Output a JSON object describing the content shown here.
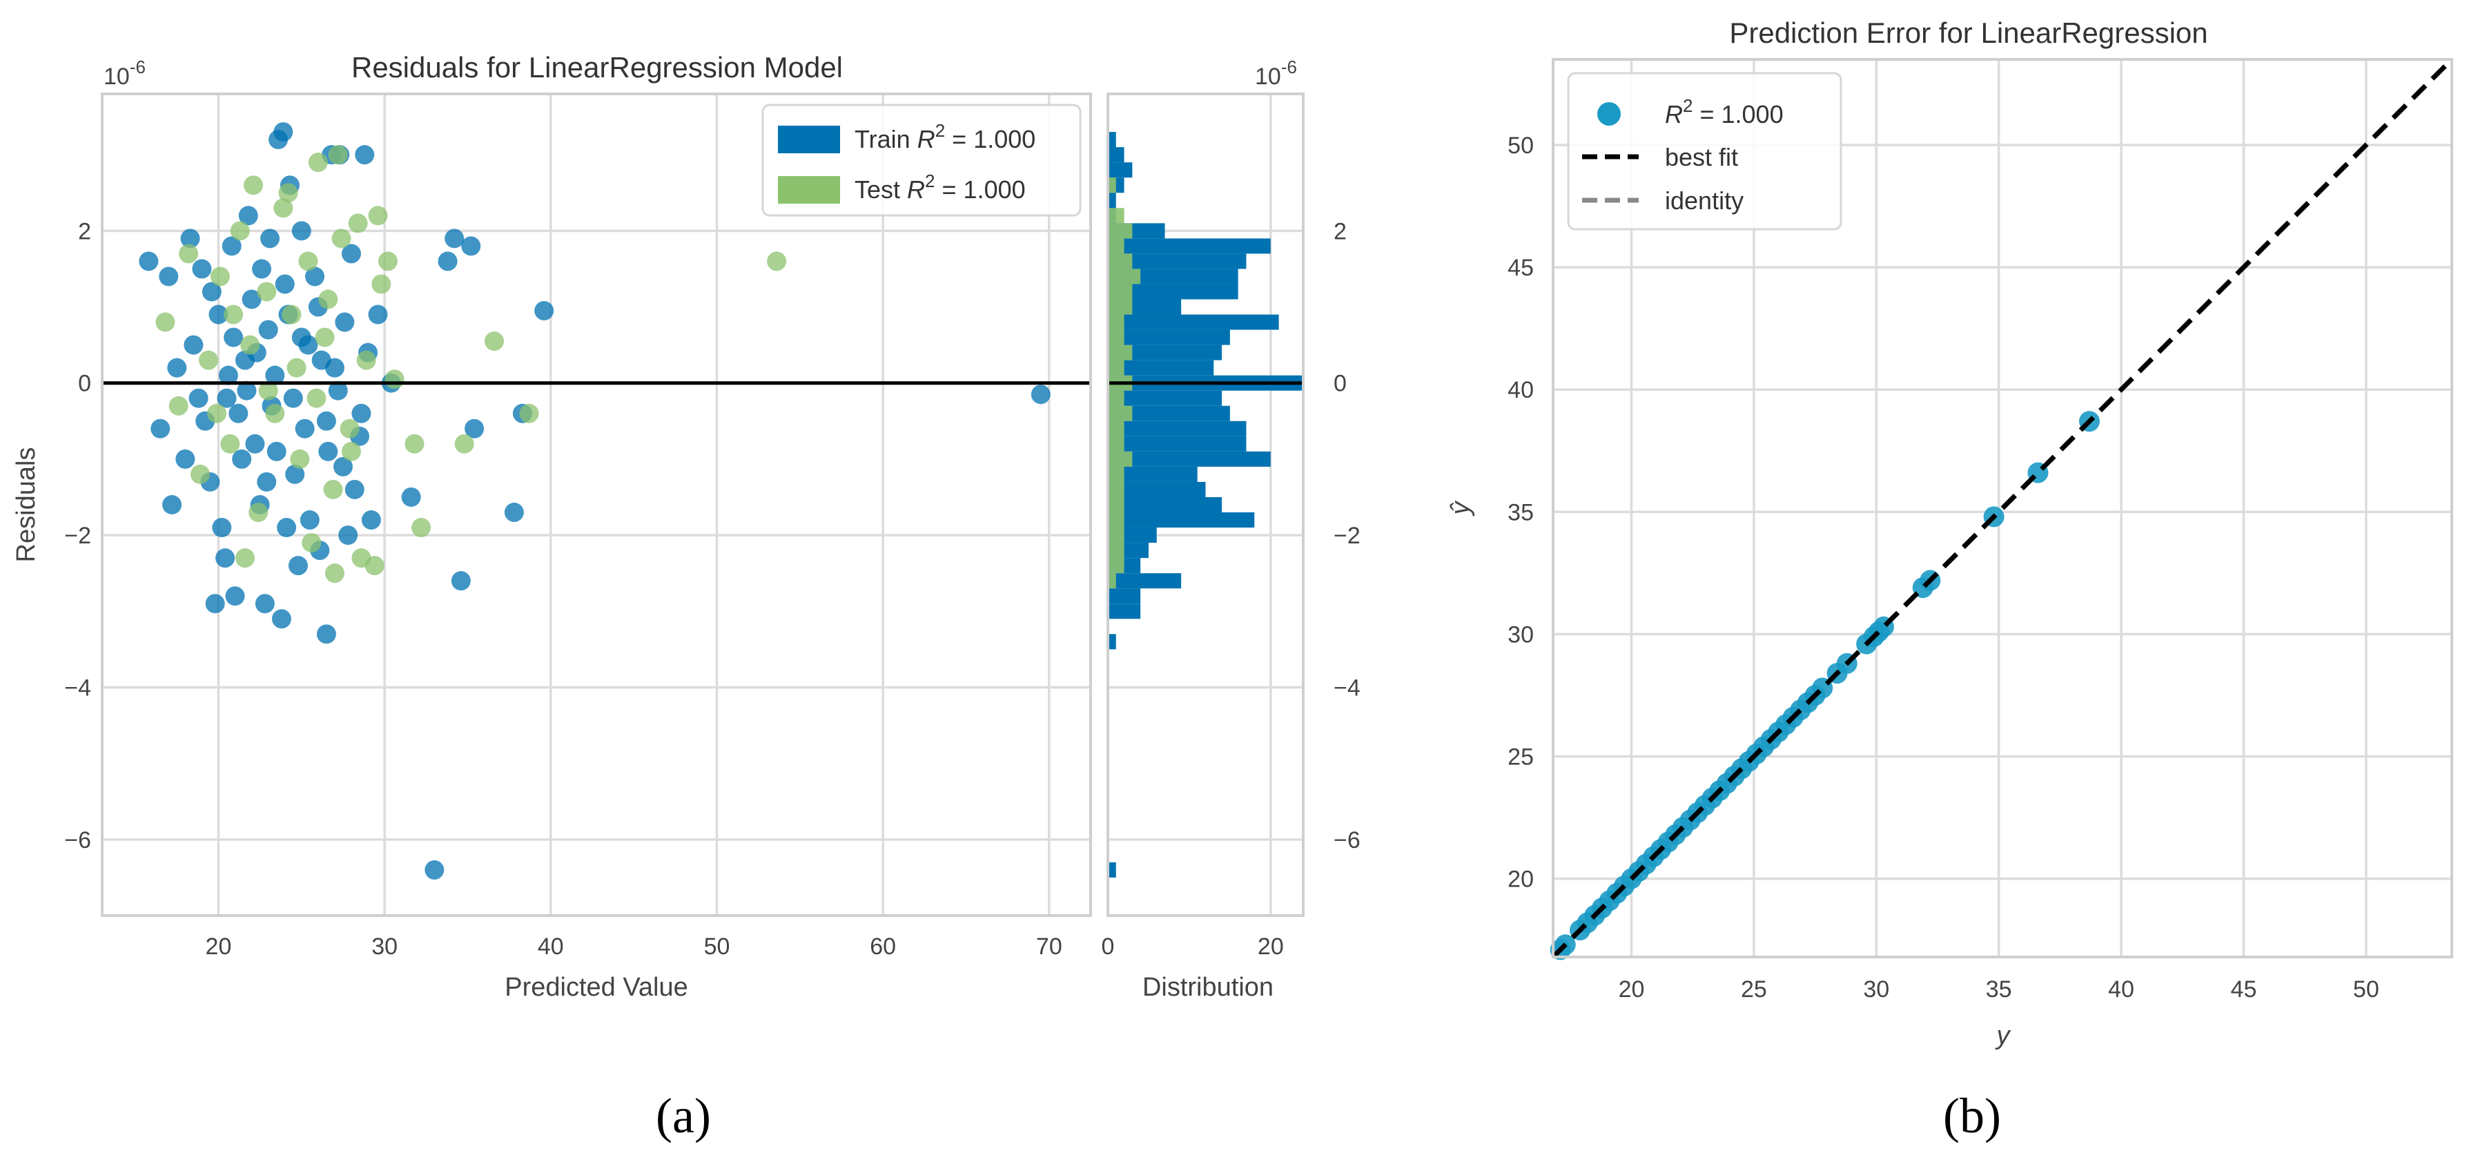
{
  "chart_data": [
    {
      "id": "a",
      "panel_label": "(a)",
      "type": "scatter",
      "title": "Residuals for LinearRegression Model",
      "xlabel": "Predicted Value",
      "ylabel": "Residuals",
      "y_multiplier": "10",
      "y_multiplier_exp": "-6",
      "xlim": [
        13,
        72.5
      ],
      "ylim": [
        -7,
        3.8
      ],
      "xticks": [
        20,
        30,
        40,
        50,
        60,
        70
      ],
      "yticks": [
        -6,
        -4,
        -2,
        0,
        2
      ],
      "legend": {
        "placement": "top-right",
        "entries": [
          {
            "series": "Train",
            "label": "Train",
            "r2": "1.000",
            "color": "#0072B2"
          },
          {
            "series": "Test",
            "label": "Test",
            "r2": "1.000",
            "color": "#8CC26E"
          }
        ]
      },
      "series": [
        {
          "name": "Train",
          "color": "#0072B2",
          "points": [
            [
              15.8,
              1.6
            ],
            [
              16.5,
              -0.6
            ],
            [
              17.0,
              1.4
            ],
            [
              17.5,
              0.2
            ],
            [
              18.0,
              -1.0
            ],
            [
              18.5,
              0.5
            ],
            [
              19.0,
              1.5
            ],
            [
              19.5,
              -1.3
            ],
            [
              20.0,
              0.9
            ],
            [
              20.4,
              -2.3
            ],
            [
              20.8,
              1.8
            ],
            [
              21.2,
              -0.4
            ],
            [
              21.6,
              0.3
            ],
            [
              22.0,
              1.1
            ],
            [
              22.5,
              -1.6
            ],
            [
              23.0,
              0.7
            ],
            [
              23.5,
              -0.9
            ],
            [
              24.0,
              1.3
            ],
            [
              24.5,
              -0.2
            ],
            [
              25.0,
              0.6
            ],
            [
              25.5,
              -1.8
            ],
            [
              26.0,
              1.0
            ],
            [
              26.5,
              -0.5
            ],
            [
              27.0,
              0.2
            ],
            [
              27.5,
              -1.1
            ],
            [
              28.0,
              1.7
            ],
            [
              28.5,
              -0.7
            ],
            [
              29.0,
              0.4
            ],
            [
              19.2,
              -0.5
            ],
            [
              20.6,
              0.1
            ],
            [
              21.4,
              -1.0
            ],
            [
              22.3,
              0.4
            ],
            [
              23.2,
              -0.3
            ],
            [
              24.2,
              0.9
            ],
            [
              25.2,
              -0.6
            ],
            [
              26.2,
              0.3
            ],
            [
              27.2,
              -0.1
            ],
            [
              28.2,
              -1.4
            ],
            [
              21.0,
              -2.8
            ],
            [
              22.8,
              -2.9
            ],
            [
              23.6,
              3.2
            ],
            [
              23.9,
              3.3
            ],
            [
              24.3,
              2.6
            ],
            [
              25.0,
              2.0
            ],
            [
              26.8,
              3.0
            ],
            [
              27.3,
              3.0
            ],
            [
              28.8,
              3.0
            ],
            [
              23.8,
              -3.1
            ],
            [
              26.5,
              -3.3
            ],
            [
              19.8,
              -2.9
            ],
            [
              18.3,
              1.9
            ],
            [
              17.2,
              -1.6
            ],
            [
              21.8,
              2.2
            ],
            [
              20.2,
              -1.9
            ],
            [
              24.8,
              -2.4
            ],
            [
              27.8,
              -2.0
            ],
            [
              29.6,
              0.9
            ],
            [
              30.4,
              0.0
            ],
            [
              31.6,
              -1.5
            ],
            [
              33.8,
              1.6
            ],
            [
              34.2,
              1.9
            ],
            [
              34.6,
              -2.6
            ],
            [
              35.2,
              1.8
            ],
            [
              35.4,
              -0.6
            ],
            [
              37.8,
              -1.7
            ],
            [
              38.3,
              -0.4
            ],
            [
              39.6,
              0.95
            ],
            [
              33.0,
              -6.4
            ],
            [
              69.5,
              -0.15
            ],
            [
              22.6,
              1.5
            ],
            [
              23.4,
              0.1
            ],
            [
              24.6,
              -1.2
            ],
            [
              25.8,
              1.4
            ],
            [
              26.6,
              -0.9
            ],
            [
              20.9,
              0.6
            ],
            [
              21.7,
              -0.1
            ],
            [
              22.2,
              -0.8
            ],
            [
              19.6,
              1.2
            ],
            [
              18.8,
              -0.2
            ],
            [
              25.4,
              0.5
            ],
            [
              27.6,
              0.8
            ],
            [
              28.6,
              -0.4
            ],
            [
              29.2,
              -1.8
            ],
            [
              23.1,
              1.9
            ],
            [
              24.1,
              -1.9
            ],
            [
              26.1,
              -2.2
            ],
            [
              20.5,
              -0.2
            ],
            [
              22.9,
              -1.3
            ]
          ]
        },
        {
          "name": "Test",
          "color": "#8CC26E",
          "points": [
            [
              16.8,
              0.8
            ],
            [
              17.6,
              -0.3
            ],
            [
              18.2,
              1.7
            ],
            [
              18.9,
              -1.2
            ],
            [
              19.4,
              0.3
            ],
            [
              20.1,
              1.4
            ],
            [
              20.7,
              -0.8
            ],
            [
              21.3,
              2.0
            ],
            [
              21.9,
              0.5
            ],
            [
              22.4,
              -1.7
            ],
            [
              22.9,
              1.2
            ],
            [
              23.4,
              -0.4
            ],
            [
              23.9,
              2.3
            ],
            [
              24.4,
              0.9
            ],
            [
              24.9,
              -1.0
            ],
            [
              25.4,
              1.6
            ],
            [
              25.9,
              -0.2
            ],
            [
              26.4,
              0.6
            ],
            [
              26.9,
              -1.4
            ],
            [
              27.4,
              1.9
            ],
            [
              27.9,
              -0.6
            ],
            [
              28.4,
              2.1
            ],
            [
              28.9,
              0.3
            ],
            [
              29.4,
              -2.4
            ],
            [
              29.8,
              1.3
            ],
            [
              30.2,
              1.6
            ],
            [
              30.6,
              0.05
            ],
            [
              31.8,
              -0.8
            ],
            [
              32.2,
              -1.9
            ],
            [
              34.8,
              -0.8
            ],
            [
              36.6,
              0.55
            ],
            [
              38.7,
              -0.4
            ],
            [
              53.6,
              1.6
            ],
            [
              22.1,
              2.6
            ],
            [
              24.2,
              2.5
            ],
            [
              26.0,
              2.9
            ],
            [
              27.2,
              3.0
            ],
            [
              29.6,
              2.2
            ],
            [
              21.6,
              -2.3
            ],
            [
              25.6,
              -2.1
            ],
            [
              27.0,
              -2.5
            ],
            [
              28.6,
              -2.3
            ],
            [
              23.0,
              -0.1
            ],
            [
              24.7,
              0.2
            ],
            [
              19.9,
              -0.4
            ],
            [
              20.9,
              0.9
            ],
            [
              26.6,
              1.1
            ],
            [
              28.0,
              -0.9
            ]
          ]
        }
      ]
    },
    {
      "id": "a-hist",
      "type": "bar",
      "orientation": "horizontal",
      "xlabel": "Distribution",
      "y_multiplier": "10",
      "y_multiplier_exp": "-6",
      "xlim": [
        0,
        24
      ],
      "ylim": [
        -7,
        3.8
      ],
      "xticks": [
        0,
        20
      ],
      "yticks": [
        -6,
        -4,
        -2,
        0,
        2
      ],
      "bin_width": 0.2,
      "series": [
        {
          "name": "Train",
          "color": "#0072B2",
          "bins": [
            [
              3.2,
              1
            ],
            [
              3.0,
              2
            ],
            [
              2.8,
              3
            ],
            [
              2.6,
              2
            ],
            [
              2.4,
              1
            ],
            [
              2.2,
              1
            ],
            [
              2.0,
              7
            ],
            [
              1.8,
              20
            ],
            [
              1.6,
              17
            ],
            [
              1.4,
              16
            ],
            [
              1.2,
              16
            ],
            [
              1.0,
              9
            ],
            [
              0.8,
              21
            ],
            [
              0.6,
              15
            ],
            [
              0.4,
              14
            ],
            [
              0.2,
              13
            ],
            [
              0.0,
              24
            ],
            [
              -0.2,
              14
            ],
            [
              -0.4,
              15
            ],
            [
              -0.6,
              17
            ],
            [
              -0.8,
              17
            ],
            [
              -1.0,
              20
            ],
            [
              -1.2,
              11
            ],
            [
              -1.4,
              12
            ],
            [
              -1.6,
              14
            ],
            [
              -1.8,
              18
            ],
            [
              -2.0,
              6
            ],
            [
              -2.2,
              5
            ],
            [
              -2.4,
              4
            ],
            [
              -2.6,
              9
            ],
            [
              -2.8,
              4
            ],
            [
              -3.0,
              4
            ],
            [
              -3.4,
              1
            ],
            [
              -6.4,
              1
            ]
          ]
        },
        {
          "name": "Test",
          "color": "#8CC26E",
          "bins": [
            [
              2.6,
              1
            ],
            [
              2.2,
              2
            ],
            [
              2.0,
              3
            ],
            [
              1.8,
              2
            ],
            [
              1.6,
              3
            ],
            [
              1.4,
              4
            ],
            [
              1.2,
              3
            ],
            [
              1.0,
              3
            ],
            [
              0.8,
              2
            ],
            [
              0.6,
              2
            ],
            [
              0.4,
              3
            ],
            [
              0.2,
              2
            ],
            [
              0.0,
              3
            ],
            [
              -0.2,
              2
            ],
            [
              -0.4,
              3
            ],
            [
              -0.6,
              2
            ],
            [
              -0.8,
              2
            ],
            [
              -1.0,
              3
            ],
            [
              -1.2,
              2
            ],
            [
              -1.4,
              2
            ],
            [
              -1.6,
              2
            ],
            [
              -1.8,
              2
            ],
            [
              -2.0,
              2
            ],
            [
              -2.2,
              2
            ],
            [
              -2.4,
              2
            ],
            [
              -2.6,
              1
            ]
          ]
        }
      ]
    },
    {
      "id": "b",
      "panel_label": "(b)",
      "type": "scatter",
      "title": "Prediction Error for LinearRegression",
      "xlabel": "y",
      "ylabel": "ŷ",
      "xlim": [
        16.8,
        53.5
      ],
      "ylim": [
        16.8,
        53.5
      ],
      "xticks": [
        20,
        25,
        30,
        35,
        40,
        45,
        50
      ],
      "yticks": [
        20,
        25,
        30,
        35,
        40,
        45,
        50
      ],
      "legend": {
        "placement": "top-left",
        "entries": [
          {
            "kind": "marker",
            "label": "R",
            "sup": "2",
            "value": " = 1.000",
            "color": "#1A9AC5"
          },
          {
            "kind": "line",
            "label": "best fit",
            "color": "#000000"
          },
          {
            "kind": "line",
            "label": "identity",
            "color": "#888888"
          }
        ]
      },
      "series": [
        {
          "name": "Points",
          "color": "#1A9AC5",
          "values": [
            17.1,
            17.3,
            17.9,
            18.2,
            18.5,
            18.8,
            19.1,
            19.4,
            19.7,
            20.0,
            20.3,
            20.6,
            20.9,
            21.2,
            21.5,
            21.8,
            22.1,
            22.4,
            22.7,
            23.0,
            23.3,
            23.6,
            23.9,
            24.2,
            24.5,
            24.8,
            25.1,
            25.4,
            25.7,
            26.0,
            26.3,
            26.6,
            26.9,
            27.2,
            27.5,
            27.8,
            28.4,
            28.8,
            29.6,
            29.9,
            30.1,
            30.3,
            31.9,
            32.2,
            34.8,
            36.6,
            38.7
          ]
        }
      ]
    }
  ]
}
